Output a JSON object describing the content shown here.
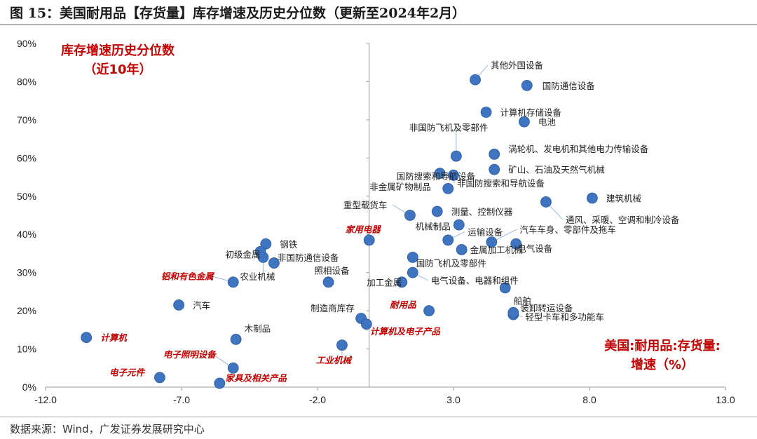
{
  "figure": {
    "title": "图 15：美国耐用品【存货量】库存增速及历史分位数（更新至2024年2月）",
    "source": "数据来源：Wind，广发证券发展研究中心"
  },
  "colors": {
    "marker": "#3e74c0",
    "marker_edge": "#2e5a99",
    "highlight_label": "#c00000",
    "axis": "#888888"
  },
  "chart_data": {
    "type": "scatter",
    "x_axis": {
      "range": [
        -12,
        13
      ],
      "ticks": [
        -12,
        -7,
        -2,
        3,
        8,
        13
      ],
      "tick_labels": [
        "-12.0",
        "-7.0",
        "-2.0",
        "3.0",
        "8.0",
        "13.0"
      ],
      "crosses_y_at": 0
    },
    "y_axis": {
      "range": [
        0,
        90
      ],
      "ticks": [
        0,
        10,
        20,
        30,
        40,
        50,
        60,
        70,
        80,
        90
      ],
      "tick_labels": [
        "0%",
        "10%",
        "20%",
        "30%",
        "40%",
        "50%",
        "60%",
        "70%",
        "80%",
        "90%"
      ],
      "crosses_x_at": -0.1
    },
    "y_annotation": [
      "库存增速历史分位数",
      "（近10年）"
    ],
    "x_annotation": [
      "美国:耐用品:存货量:",
      "增速（%）"
    ],
    "points": [
      {
        "name": "其他外国设备",
        "x": 3.8,
        "y": 80.5,
        "highlight": false
      },
      {
        "name": "国防通信设备",
        "x": 5.7,
        "y": 79,
        "highlight": false
      },
      {
        "name": "计算机存储设备",
        "x": 4.2,
        "y": 72,
        "highlight": false
      },
      {
        "name": "电池",
        "x": 5.6,
        "y": 69.5,
        "highlight": false
      },
      {
        "name": "非国防飞机及零部件",
        "x": 3.1,
        "y": 60.5,
        "highlight": false
      },
      {
        "name": "涡轮机、发电机和其他电力传输设备",
        "x": 4.5,
        "y": 61,
        "highlight": false
      },
      {
        "name": "国防搜索和导航设备",
        "x": 2.5,
        "y": 56,
        "highlight": false
      },
      {
        "name": "矿山、石油及天然气机械",
        "x": 4.5,
        "y": 57,
        "highlight": false
      },
      {
        "name": "非国防搜索和导航设备",
        "x": 3.0,
        "y": 55.5,
        "highlight": false
      },
      {
        "name": "非金属矿物制品",
        "x": 2.8,
        "y": 52,
        "highlight": false
      },
      {
        "name": "建筑机械",
        "x": 8.1,
        "y": 49.5,
        "highlight": false
      },
      {
        "name": "通风、采暖、空调和制冷设备",
        "x": 6.4,
        "y": 48.5,
        "highlight": false
      },
      {
        "name": "重型载货车",
        "x": 1.4,
        "y": 45,
        "highlight": false
      },
      {
        "name": "测量、控制仪器",
        "x": 2.4,
        "y": 46,
        "highlight": false
      },
      {
        "name": "机械制品",
        "x": 3.2,
        "y": 42.5,
        "highlight": false
      },
      {
        "name": "家用电器",
        "x": -0.1,
        "y": 38.5,
        "highlight": true
      },
      {
        "name": "运输设备",
        "x": 2.8,
        "y": 38.5,
        "highlight": false
      },
      {
        "name": "汽车车身、零部件及拖车",
        "x": 4.4,
        "y": 38,
        "highlight": false
      },
      {
        "name": "金属加工机械",
        "x": 3.3,
        "y": 36,
        "highlight": false
      },
      {
        "name": "电气设备",
        "x": 5.3,
        "y": 37.5,
        "highlight": false
      },
      {
        "name": "钢铁",
        "x": -3.9,
        "y": 37.5,
        "highlight": false
      },
      {
        "name": "初级金属",
        "x": -4.1,
        "y": 35.5,
        "highlight": false
      },
      {
        "name": "非国防通信设备",
        "x": -3.6,
        "y": 32.5,
        "highlight": false
      },
      {
        "name": "农业机械",
        "x": -4.0,
        "y": 34,
        "highlight": false
      },
      {
        "name": "照相设备",
        "x": -1.6,
        "y": 27.5,
        "highlight": false
      },
      {
        "name": "国防飞机及零部件",
        "x": 1.5,
        "y": 34,
        "highlight": false
      },
      {
        "name": "电气设备、电器和组件",
        "x": 1.5,
        "y": 30,
        "highlight": false
      },
      {
        "name": "加工金属",
        "x": 1.1,
        "y": 27.5,
        "highlight": false
      },
      {
        "name": "船舶",
        "x": 4.9,
        "y": 26,
        "highlight": false
      },
      {
        "name": "铝和有色金属",
        "x": -5.1,
        "y": 27.5,
        "highlight": true
      },
      {
        "name": "汽车",
        "x": -7.1,
        "y": 21.5,
        "highlight": false
      },
      {
        "name": "耐用品",
        "x": 2.1,
        "y": 20,
        "highlight": true
      },
      {
        "name": "轻型卡车和多功能车",
        "x": 5.2,
        "y": 19,
        "highlight": false
      },
      {
        "name": "装卸转运设备",
        "x": 5.2,
        "y": 19.5,
        "highlight": false
      },
      {
        "name": "制造商库存",
        "x": -0.4,
        "y": 18,
        "highlight": false
      },
      {
        "name": "计算机及电子产品",
        "x": -0.2,
        "y": 16.5,
        "highlight": true
      },
      {
        "name": "计算机",
        "x": -10.5,
        "y": 13,
        "highlight": true
      },
      {
        "name": "木制品",
        "x": -5.0,
        "y": 12.5,
        "highlight": false
      },
      {
        "name": "工业机械",
        "x": -1.1,
        "y": 11,
        "highlight": true
      },
      {
        "name": "电子照明设备",
        "x": -5.1,
        "y": 5,
        "highlight": true
      },
      {
        "name": "电子元件",
        "x": -7.8,
        "y": 2.5,
        "highlight": true
      },
      {
        "name": "家具及相关产品",
        "x": -5.6,
        "y": 1,
        "highlight": true
      }
    ]
  }
}
